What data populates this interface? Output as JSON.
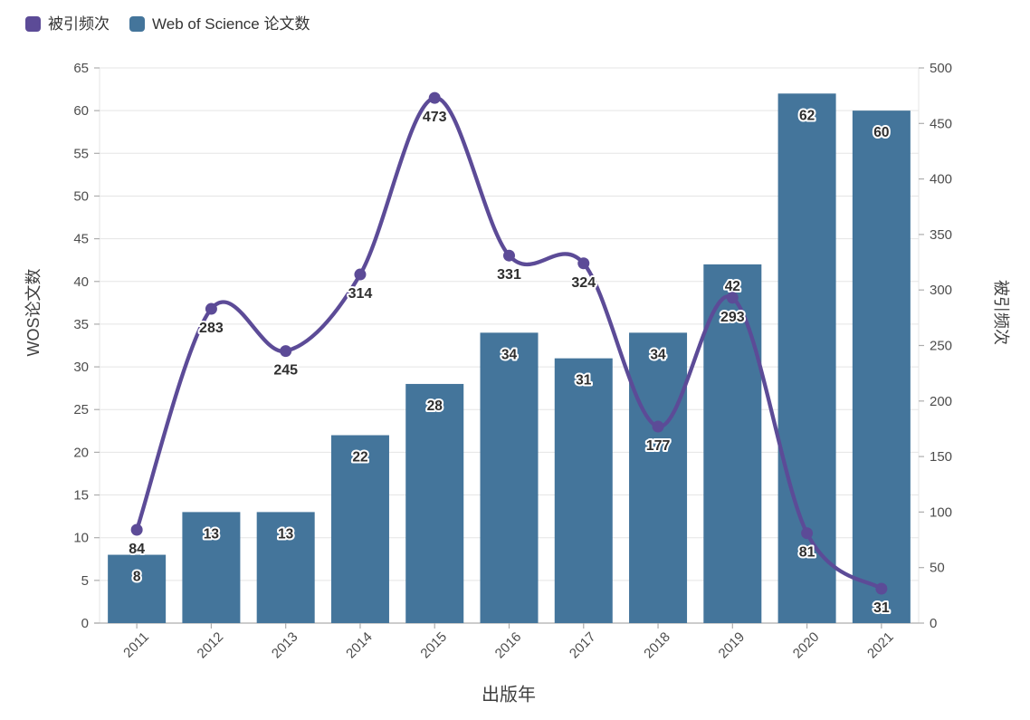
{
  "legend": {
    "items": [
      {
        "label": "被引频次",
        "color": "#5C4B97",
        "series_type": "line"
      },
      {
        "label": "Web of Science 论文数",
        "color": "#44759B",
        "series_type": "bar"
      }
    ]
  },
  "axes": {
    "x_title": "出版年",
    "y_left_title": "WOS论文数",
    "y_right_title": "被引频次"
  },
  "chart_data": {
    "type": "combo",
    "title": "",
    "categories": [
      "2011",
      "2012",
      "2013",
      "2014",
      "2015",
      "2016",
      "2017",
      "2018",
      "2019",
      "2020",
      "2021"
    ],
    "series": [
      {
        "name": "Web of Science 论文数",
        "type": "bar",
        "axis": "left",
        "color": "#44759B",
        "values": [
          8,
          13,
          13,
          22,
          28,
          34,
          31,
          34,
          42,
          62,
          60
        ]
      },
      {
        "name": "被引频次",
        "type": "line",
        "axis": "right",
        "color": "#5C4B97",
        "values": [
          84,
          283,
          245,
          314,
          473,
          331,
          324,
          177,
          293,
          81,
          31
        ]
      }
    ],
    "y_left": {
      "min": 0,
      "max": 65,
      "step": 5
    },
    "y_right": {
      "min": 0,
      "max": 500,
      "step": 50
    },
    "xlabel": "出版年",
    "ylabel_left": "WOS论文数",
    "ylabel_right": "被引频次",
    "grid": "horizontal",
    "legend_position": "top-left",
    "data_labels": true,
    "x_tick_rotation": -45
  },
  "colors": {
    "bar": "#44759B",
    "line": "#5C4B97",
    "grid": "#e5e5e5",
    "axis_line": "#adadad",
    "tick": "#adadad",
    "tick_label": "#4d4d4d",
    "data_label": "#2e2e2e",
    "background": "#ffffff"
  }
}
